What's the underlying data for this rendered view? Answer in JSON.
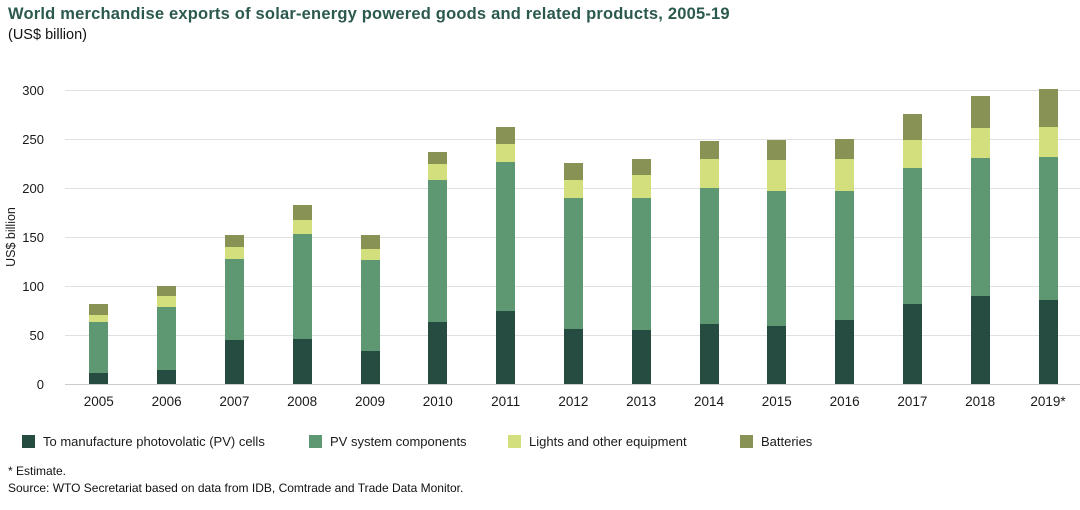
{
  "chart_data": {
    "type": "bar",
    "stacked": true,
    "title": "World merchandise exports of solar-energy powered goods and related products, 2005-19",
    "subtitle": "(US$ billion)",
    "ylabel": "US$ billion",
    "xlabel": "",
    "ylim": [
      0,
      300
    ],
    "yticks": [
      0,
      50,
      100,
      150,
      200,
      250,
      300
    ],
    "grid": true,
    "legend_position": "bottom",
    "categories": [
      "2005",
      "2006",
      "2007",
      "2008",
      "2009",
      "2010",
      "2011",
      "2012",
      "2013",
      "2014",
      "2015",
      "2016",
      "2017",
      "2018",
      "2019*"
    ],
    "series": [
      {
        "name": "To manufacture photovolatic (PV) cells",
        "color": "#264b41",
        "values": [
          11,
          14,
          45,
          46,
          34,
          63,
          74,
          56,
          55,
          61,
          59,
          65,
          82,
          90,
          86
        ]
      },
      {
        "name": "PV system components",
        "color": "#5e9873",
        "values": [
          52,
          65,
          83,
          107,
          93,
          145,
          153,
          134,
          135,
          139,
          138,
          132,
          138,
          141,
          146
        ]
      },
      {
        "name": "Lights and other equipment",
        "color": "#d3de7c",
        "values": [
          7,
          11,
          12,
          14,
          11,
          17,
          18,
          18,
          23,
          30,
          32,
          33,
          29,
          30,
          30
        ]
      },
      {
        "name": "Batteries",
        "color": "#879254",
        "values": [
          12,
          10,
          12,
          16,
          14,
          12,
          17,
          18,
          17,
          18,
          20,
          20,
          27,
          33,
          39
        ]
      }
    ]
  },
  "footnotes": [
    "* Estimate.",
    "Source: WTO Secretariat based on data from IDB, Comtrade and Trade Data Monitor."
  ],
  "colors": {
    "title": "#2c594e",
    "gridline": "#e0e0e0",
    "baseline": "#cccccc",
    "text": "#1a1a1a"
  }
}
